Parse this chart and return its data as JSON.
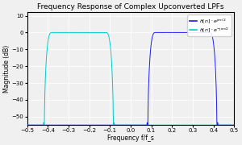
{
  "title": "Frequency Response of Complex Upconverted LPFs",
  "xlabel": "Frequency f/f_s",
  "ylabel": "Magnitude (dB)",
  "xlim": [
    -0.5,
    0.5
  ],
  "ylim": [
    -55,
    12
  ],
  "yticks": [
    10,
    0,
    -10,
    -20,
    -30,
    -40,
    -50
  ],
  "xticks": [
    -0.5,
    -0.4,
    -0.3,
    -0.2,
    -0.1,
    0.0,
    0.1,
    0.2,
    0.3,
    0.4,
    0.5
  ],
  "color_pos": "#1a1aff",
  "color_neg": "#00cccc",
  "background_color": "#f0f0f0",
  "grid_color": "#ffffff",
  "num_taps": 101,
  "cutoff": 0.15,
  "shift": 0.25,
  "floor_dB": -55,
  "linewidth": 0.7
}
